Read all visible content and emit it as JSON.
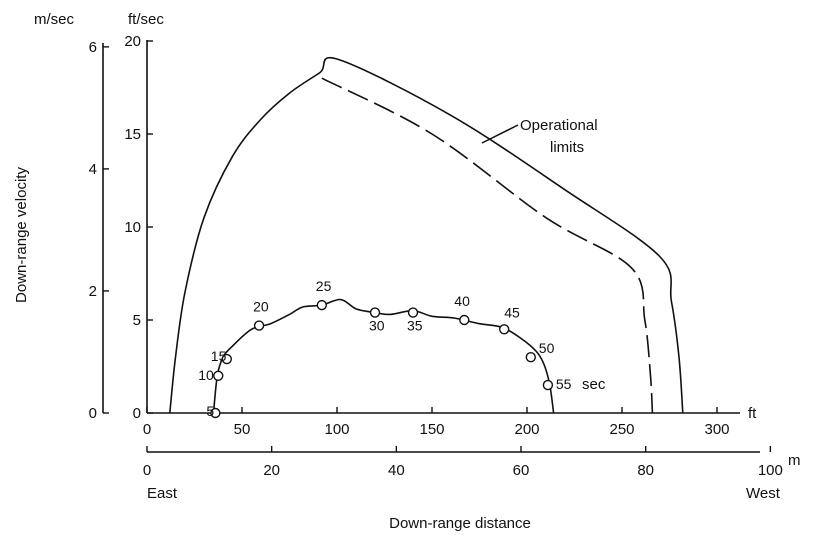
{
  "chart_data": {
    "type": "line",
    "title": "",
    "xlabel": "Down-range distance",
    "ylabel": "Down-range velocity",
    "y_unit_left": "m/sec",
    "y_unit_right": "ft/sec",
    "x_unit_ft": "ft",
    "x_unit_m": "m",
    "x_left_label": "East",
    "x_right_label": "West",
    "time_unit": "sec",
    "annotation": "Operational limits",
    "x_ticks_ft": [
      "0",
      "50",
      "100",
      "150",
      "200",
      "250",
      "300"
    ],
    "x_ticks_m": [
      "0",
      "20",
      "40",
      "60",
      "80",
      "100"
    ],
    "y_ticks_ftsec": [
      "0",
      "5",
      "10",
      "15",
      "20"
    ],
    "y_ticks_msec": [
      "0",
      "2",
      "4",
      "6"
    ],
    "xlim_ft": [
      0,
      320
    ],
    "ylim_ftsec": [
      0,
      20
    ],
    "grid": false,
    "series": [
      {
        "style": "solid",
        "points": [
          [
            12,
            0
          ],
          [
            15,
            3
          ],
          [
            20,
            6.5
          ],
          [
            30,
            10.5
          ],
          [
            45,
            13.8
          ],
          [
            60,
            15.8
          ],
          [
            75,
            17.2
          ],
          [
            91,
            18.3
          ],
          [
            101,
            19
          ],
          [
            160,
            16
          ],
          [
            220,
            12
          ],
          [
            270,
            8.4
          ],
          [
            276,
            6
          ],
          [
            280,
            3
          ],
          [
            282,
            0
          ]
        ]
      },
      {
        "style": "dashed",
        "points": [
          [
            92,
            18.0
          ],
          [
            150,
            15
          ],
          [
            210,
            10.5
          ],
          [
            255,
            7.8
          ],
          [
            262,
            5
          ],
          [
            265,
            2
          ],
          [
            266,
            0
          ]
        ]
      },
      {
        "style": "solid-with-markers",
        "points": [
          [
            35,
            0
          ],
          [
            37,
            2
          ],
          [
            40,
            3
          ],
          [
            45,
            3.6
          ],
          [
            55,
            4.5
          ],
          [
            65,
            4.8
          ],
          [
            75,
            5.3
          ],
          [
            82,
            5.7
          ],
          [
            92,
            5.8
          ],
          [
            102,
            6.1
          ],
          [
            110,
            5.6
          ],
          [
            120,
            5.4
          ],
          [
            128,
            5.3
          ],
          [
            140,
            5.5
          ],
          [
            150,
            5.2
          ],
          [
            162,
            5.1
          ],
          [
            175,
            4.8
          ],
          [
            187,
            4.6
          ],
          [
            197,
            4.0
          ],
          [
            205,
            3.3
          ],
          [
            209,
            2.6
          ],
          [
            212,
            1.5
          ],
          [
            214,
            0
          ]
        ],
        "markers": [
          {
            "t": "5",
            "x": 36,
            "y": 0
          },
          {
            "t": "10",
            "x": 37.5,
            "y": 2
          },
          {
            "t": "15",
            "x": 42,
            "y": 2.9
          },
          {
            "t": "20",
            "x": 59,
            "y": 4.7
          },
          {
            "t": "25",
            "x": 92,
            "y": 5.8
          },
          {
            "t": "30",
            "x": 120,
            "y": 5.4
          },
          {
            "t": "35",
            "x": 140,
            "y": 5.4
          },
          {
            "t": "40",
            "x": 167,
            "y": 5.0
          },
          {
            "t": "45",
            "x": 188,
            "y": 4.5
          },
          {
            "t": "50",
            "x": 202,
            "y": 3.0
          },
          {
            "t": "55",
            "x": 211,
            "y": 1.5
          }
        ]
      }
    ]
  }
}
